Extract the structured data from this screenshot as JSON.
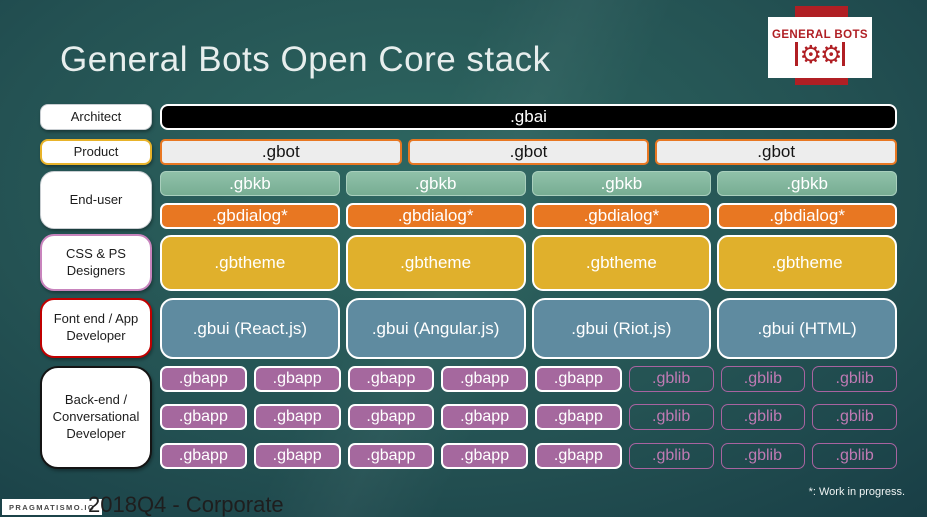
{
  "slide": {
    "title": "General Bots Open Core stack",
    "footnote": "*: Work in progress.",
    "footer": {
      "badge": "PRAGMATISMO.IO",
      "caption": "2018Q4 - Corporate"
    }
  },
  "logo": {
    "text": "GENERAL BOTS",
    "gears": "⚙⚙"
  },
  "roles": {
    "architect": "Architect",
    "product": "Product",
    "end_user": "End-user",
    "designers": "CSS & PS Designers",
    "frontend": "Font end / App Developer",
    "backend": "Back-end / Conversational Developer"
  },
  "stack": {
    "gbai": ".gbai",
    "gbot": {
      "items": [
        ".gbot",
        ".gbot",
        ".gbot"
      ]
    },
    "gbkb": {
      "items": [
        ".gbkb",
        ".gbkb",
        ".gbkb",
        ".gbkb"
      ]
    },
    "gbdialog": {
      "items": [
        ".gbdialog*",
        ".gbdialog*",
        ".gbdialog*",
        ".gbdialog*"
      ]
    },
    "gbtheme": {
      "items": [
        ".gbtheme",
        ".gbtheme",
        ".gbtheme",
        ".gbtheme"
      ]
    },
    "gbui": {
      "items": [
        ".gbui (React.js)",
        ".gbui (Angular.js)",
        ".gbui (Riot.js)",
        ".gbui (HTML)"
      ]
    },
    "apps": {
      "rows": [
        {
          "items": [
            ".gbapp",
            ".gbapp",
            ".gbapp",
            ".gbapp",
            ".gbapp",
            ".gblib",
            ".gblib",
            ".gblib"
          ]
        },
        {
          "items": [
            ".gbapp",
            ".gbapp",
            ".gbapp",
            ".gbapp",
            ".gbapp",
            ".gblib",
            ".gblib",
            ".gblib"
          ]
        },
        {
          "items": [
            ".gbapp",
            ".gbapp",
            ".gbapp",
            ".gbapp",
            ".gbapp",
            ".gblib",
            ".gblib",
            ".gblib"
          ]
        }
      ]
    }
  },
  "colors": {
    "background_center": "#2e6761",
    "background_edge": "#122c37",
    "logo_red": "#b01f24",
    "gbai_fill": "#000000",
    "gbot_fill": "#ededed",
    "gbot_border": "#e87722",
    "gbkb_fill": "#82b79d",
    "gbdialog_fill": "#e87722",
    "gbtheme_fill": "#e0b02c",
    "gbui_fill": "#5f8ba0",
    "gbapp_fill": "#a5689e",
    "gblib_accent": "#a863a0",
    "product_border": "#e8b32a",
    "designers_border": "#c884bd",
    "frontend_border": "#c00000"
  }
}
